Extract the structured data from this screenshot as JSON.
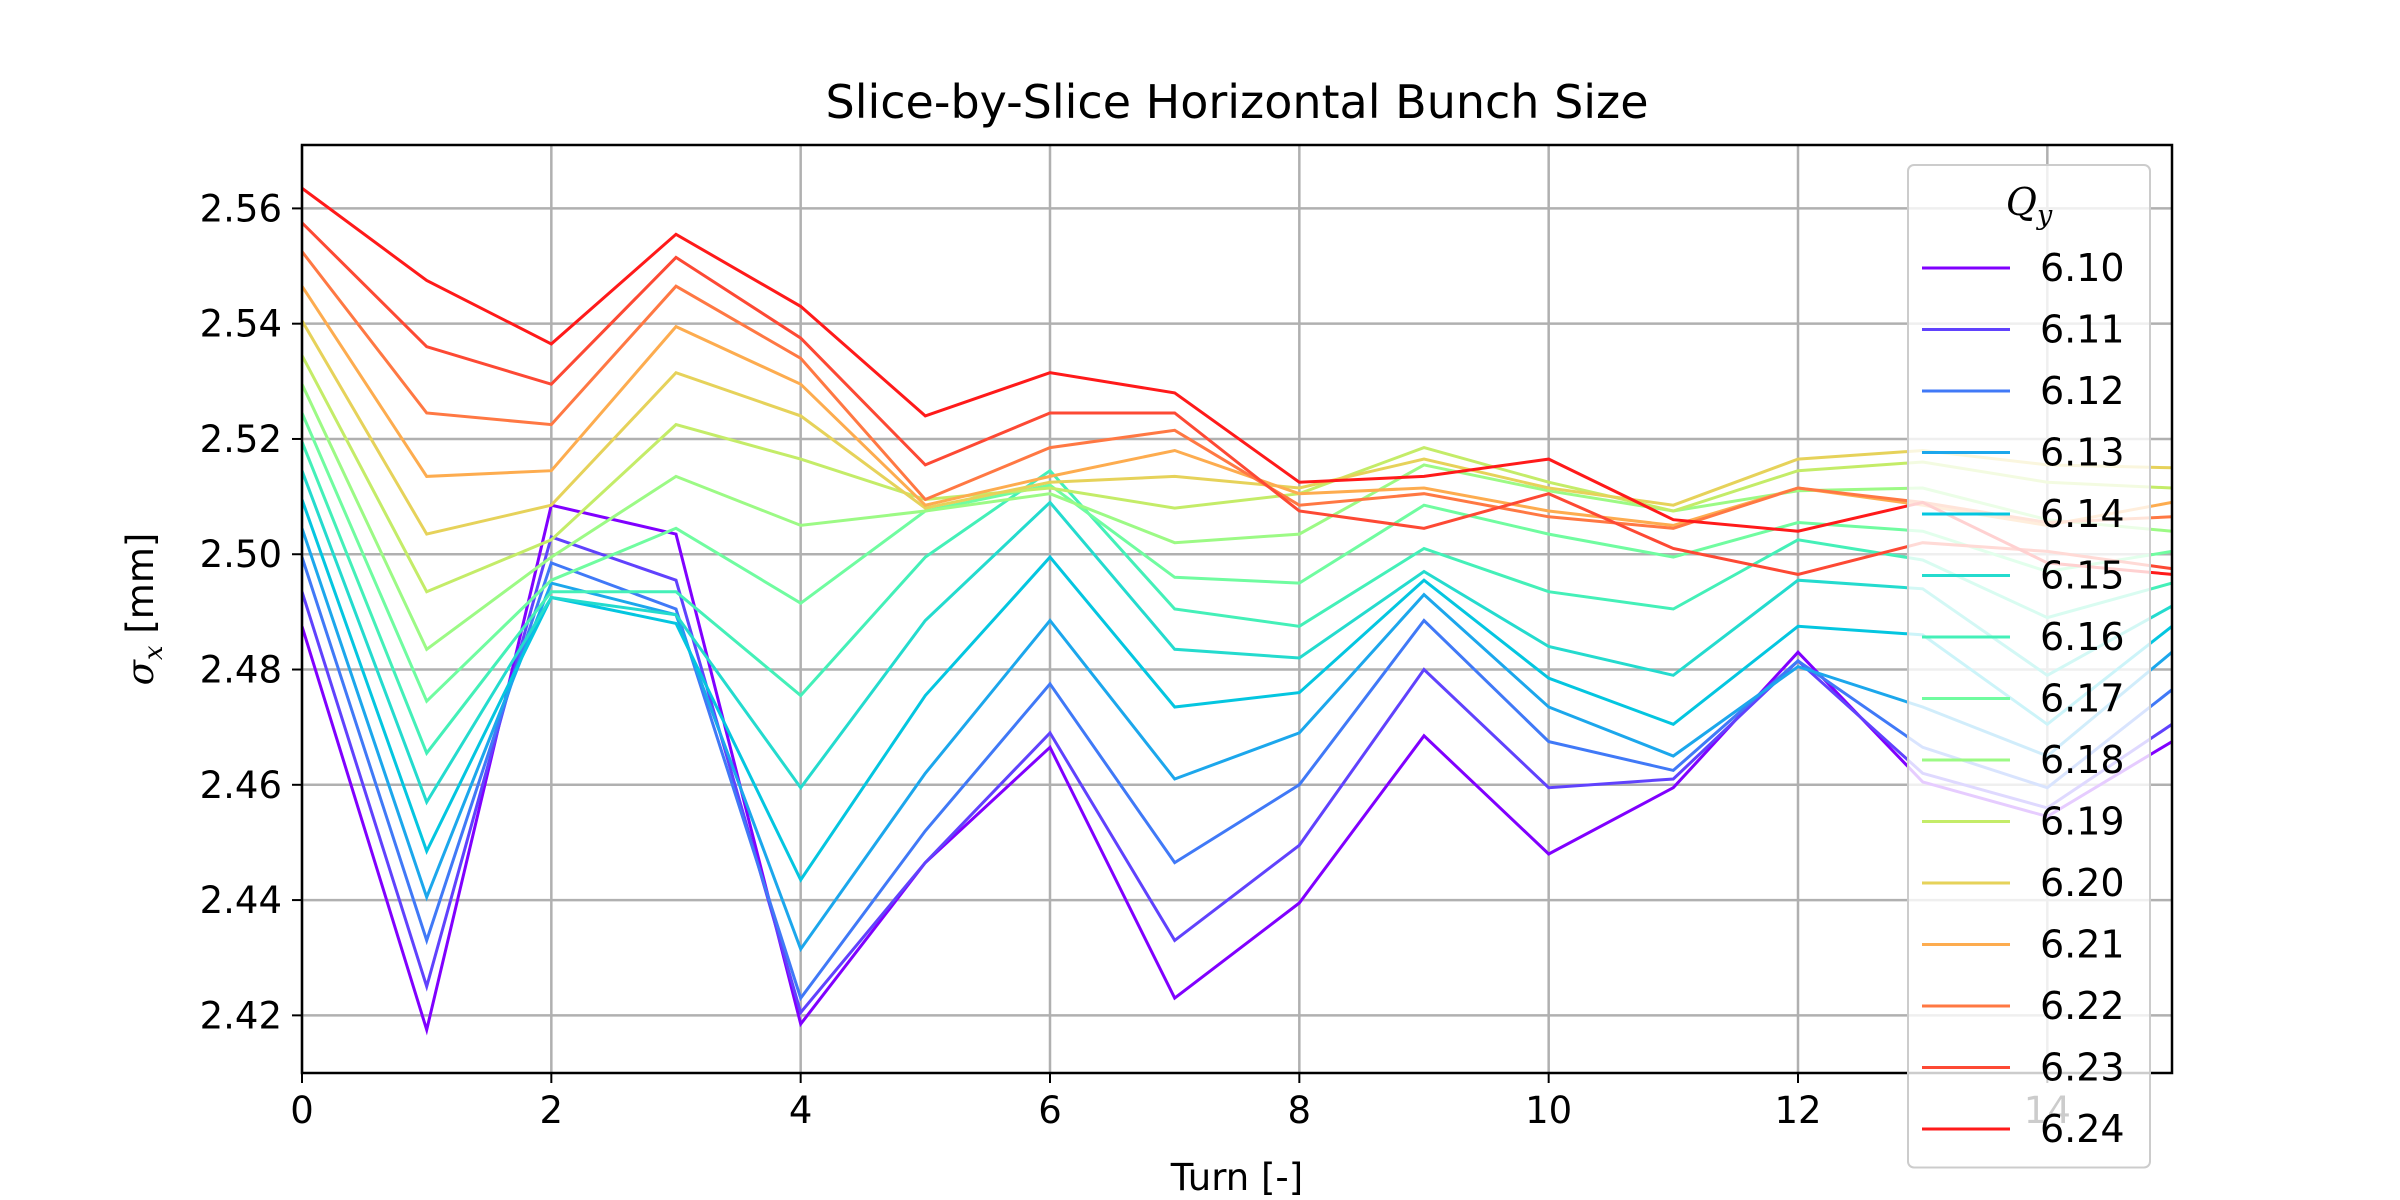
{
  "chart_data": {
    "type": "line",
    "title": "Slice-by-Slice Horizontal Bunch Size",
    "xlabel": "Turn [-]",
    "ylabel_main": "σ",
    "ylabel_sub": "x",
    "ylabel_unit": " [mm]",
    "xlim": [
      0,
      15
    ],
    "ylim": [
      2.41,
      2.571
    ],
    "xticks": [
      0,
      2,
      4,
      6,
      8,
      10,
      12,
      14
    ],
    "yticks": [
      2.42,
      2.44,
      2.46,
      2.48,
      2.5,
      2.52,
      2.54,
      2.56
    ],
    "xtick_labels": [
      "0",
      "2",
      "4",
      "6",
      "8",
      "10",
      "12",
      "14"
    ],
    "ytick_labels": [
      "2.42",
      "2.44",
      "2.46",
      "2.48",
      "2.50",
      "2.52",
      "2.54",
      "2.56"
    ],
    "grid": true,
    "legend": {
      "title_main": "Q",
      "title_sub": "y",
      "placement": "upper right"
    },
    "x": [
      0,
      1,
      2,
      3,
      4,
      5,
      6,
      7,
      8,
      9,
      10,
      11,
      12,
      13,
      14,
      15
    ],
    "series": [
      {
        "name": "6.10",
        "color": "#8000ff",
        "values": [
          2.4875,
          2.4175,
          2.5085,
          2.5035,
          2.4185,
          2.4465,
          2.4665,
          2.423,
          2.4395,
          2.4685,
          2.448,
          2.4595,
          2.483,
          2.4605,
          2.4545,
          2.4675
        ]
      },
      {
        "name": "6.11",
        "color": "#6042fd",
        "values": [
          2.4935,
          2.425,
          2.503,
          2.4955,
          2.4205,
          2.4465,
          2.469,
          2.433,
          2.4495,
          2.48,
          2.4595,
          2.461,
          2.4815,
          2.462,
          2.456,
          2.4705
        ]
      },
      {
        "name": "6.12",
        "color": "#4079f7",
        "values": [
          2.4995,
          2.433,
          2.4985,
          2.4905,
          2.423,
          2.452,
          2.4775,
          2.4465,
          2.46,
          2.4885,
          2.4675,
          2.4625,
          2.4815,
          2.4665,
          2.4595,
          2.4765
        ]
      },
      {
        "name": "6.13",
        "color": "#1ca7ec",
        "values": [
          2.5045,
          2.4405,
          2.495,
          2.4895,
          2.4315,
          2.462,
          2.4885,
          2.461,
          2.469,
          2.493,
          2.4735,
          2.465,
          2.4805,
          2.4735,
          2.465,
          2.483
        ]
      },
      {
        "name": "6.14",
        "color": "#04c6e0",
        "values": [
          2.5095,
          2.4485,
          2.4925,
          2.488,
          2.4435,
          2.4755,
          2.4995,
          2.4735,
          2.476,
          2.4955,
          2.4785,
          2.4705,
          2.4875,
          2.486,
          2.4705,
          2.4875
        ]
      },
      {
        "name": "6.15",
        "color": "#24dbce",
        "values": [
          2.5145,
          2.457,
          2.4925,
          2.4895,
          2.4595,
          2.4885,
          2.509,
          2.4835,
          2.482,
          2.497,
          2.484,
          2.479,
          2.4955,
          2.494,
          2.479,
          2.491
        ]
      },
      {
        "name": "6.16",
        "color": "#44f0b8",
        "values": [
          2.5195,
          2.4655,
          2.4935,
          2.4935,
          2.4755,
          2.4995,
          2.5145,
          2.4905,
          2.4875,
          2.501,
          2.4935,
          2.4905,
          2.5025,
          2.499,
          2.489,
          2.495
        ]
      },
      {
        "name": "6.17",
        "color": "#70fca0",
        "values": [
          2.5245,
          2.4745,
          2.4955,
          2.5045,
          2.4915,
          2.5075,
          2.512,
          2.496,
          2.495,
          2.5085,
          2.5035,
          2.4995,
          2.5055,
          2.504,
          2.497,
          2.5005
        ]
      },
      {
        "name": "6.18",
        "color": "#9cfa85",
        "values": [
          2.5295,
          2.4835,
          2.4995,
          2.5135,
          2.505,
          2.5075,
          2.5105,
          2.502,
          2.5035,
          2.5155,
          2.511,
          2.5075,
          2.511,
          2.5115,
          2.506,
          2.504
        ]
      },
      {
        "name": "6.19",
        "color": "#c4ec68",
        "values": [
          2.5345,
          2.4935,
          2.5025,
          2.5225,
          2.5165,
          2.5095,
          2.5115,
          2.508,
          2.5105,
          2.5185,
          2.5125,
          2.5075,
          2.5145,
          2.516,
          2.5125,
          2.5115
        ]
      },
      {
        "name": "6.20",
        "color": "#e6d25a",
        "values": [
          2.5405,
          2.5035,
          2.5085,
          2.5315,
          2.524,
          2.508,
          2.5125,
          2.5135,
          2.5115,
          2.5165,
          2.5115,
          2.5085,
          2.5165,
          2.518,
          2.5155,
          2.515
        ]
      },
      {
        "name": "6.21",
        "color": "#fdac4f",
        "values": [
          2.5465,
          2.5135,
          2.5145,
          2.5395,
          2.5295,
          2.5085,
          2.5135,
          2.518,
          2.5105,
          2.5115,
          2.5075,
          2.505,
          2.5115,
          2.5085,
          2.505,
          2.509
        ]
      },
      {
        "name": "6.22",
        "color": "#ff7843",
        "values": [
          2.5525,
          2.5245,
          2.5225,
          2.5465,
          2.534,
          2.5095,
          2.5185,
          2.5215,
          2.5085,
          2.5105,
          2.5065,
          2.5045,
          2.5115,
          2.509,
          2.5055,
          2.5065
        ]
      },
      {
        "name": "6.23",
        "color": "#fd4934",
        "values": [
          2.5575,
          2.536,
          2.5295,
          2.5515,
          2.5375,
          2.5155,
          2.5245,
          2.5245,
          2.5075,
          2.5045,
          2.5105,
          2.501,
          2.4965,
          2.502,
          2.5005,
          2.4975
        ]
      },
      {
        "name": "6.24",
        "color": "#ff1a1a",
        "values": [
          2.5635,
          2.5475,
          2.5365,
          2.5555,
          2.543,
          2.524,
          2.5315,
          2.528,
          2.5125,
          2.5135,
          2.5165,
          2.506,
          2.504,
          2.509,
          2.4985,
          2.4965
        ]
      }
    ]
  }
}
